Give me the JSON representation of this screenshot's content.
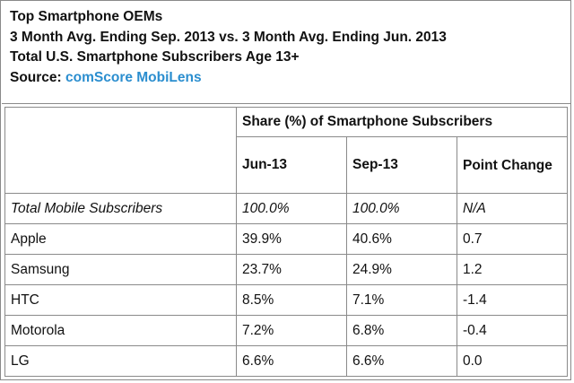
{
  "header": {
    "line1": "Top Smartphone OEMs",
    "line2": "3 Month Avg. Ending Sep. 2013 vs. 3 Month Avg. Ending Jun. 2013",
    "line3": "Total U.S. Smartphone Subscribers Age 13+",
    "source_label": "Source: ",
    "source_link": "comScore MobiLens"
  },
  "table": {
    "group_header": "Share (%) of Smartphone Subscribers",
    "columns": [
      "Jun-13",
      "Sep-13",
      "Point Change"
    ],
    "rows": [
      {
        "label": "Total Mobile Subscribers",
        "jun": "100.0%",
        "sep": "100.0%",
        "change": "N/A"
      },
      {
        "label": "Apple",
        "jun": "39.9%",
        "sep": "40.6%",
        "change": "0.7"
      },
      {
        "label": "Samsung",
        "jun": "23.7%",
        "sep": "24.9%",
        "change": "1.2"
      },
      {
        "label": "HTC",
        "jun": "8.5%",
        "sep": "7.1%",
        "change": "-1.4"
      },
      {
        "label": "Motorola",
        "jun": "7.2%",
        "sep": "6.8%",
        "change": "-0.4"
      },
      {
        "label": "LG",
        "jun": "6.6%",
        "sep": "6.6%",
        "change": "0.0"
      }
    ]
  }
}
